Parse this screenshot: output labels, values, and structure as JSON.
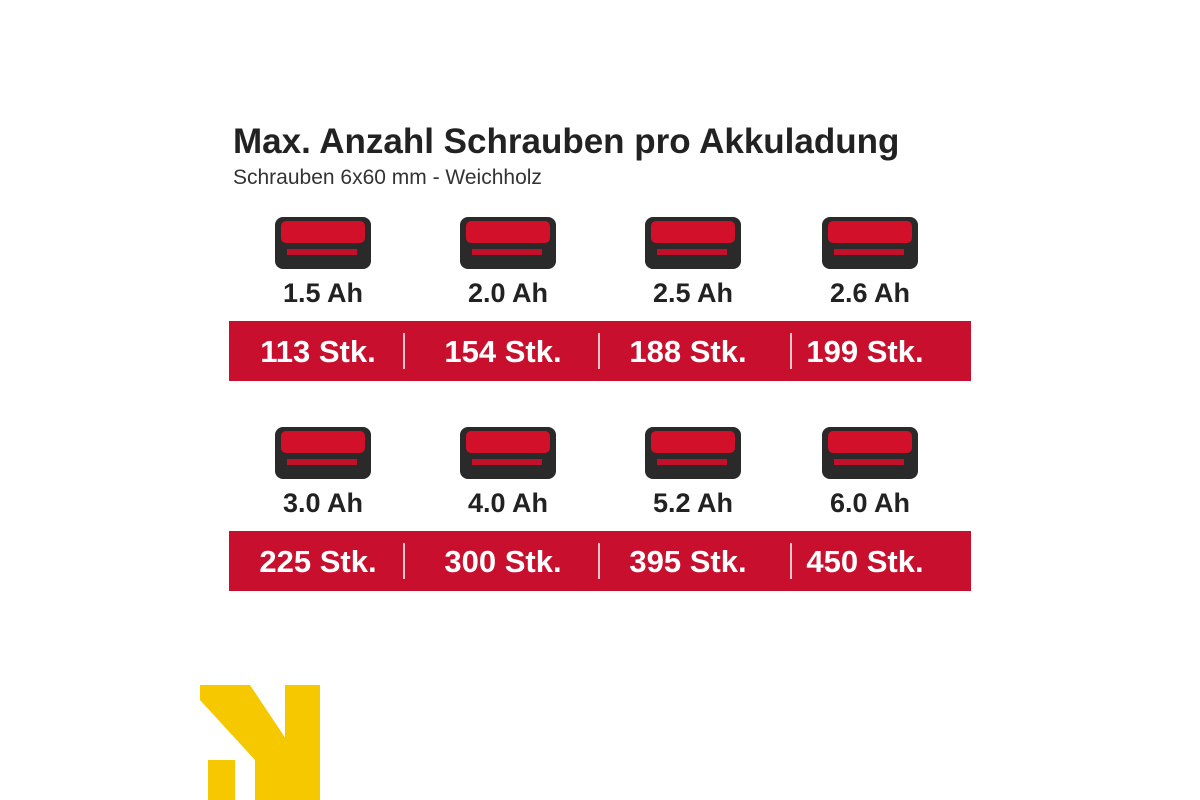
{
  "header": {
    "title": "Max. Anzahl Schrauben pro Akkuladung",
    "subtitle": "Schrauben 6x60 mm - Weichholz"
  },
  "rows": [
    [
      {
        "capacity": "1.5 Ah",
        "count": "113 Stk."
      },
      {
        "capacity": "2.0 Ah",
        "count": "154 Stk."
      },
      {
        "capacity": "2.5 Ah",
        "count": "188 Stk."
      },
      {
        "capacity": "2.6 Ah",
        "count": "199 Stk."
      }
    ],
    [
      {
        "capacity": "3.0 Ah",
        "count": "225 Stk."
      },
      {
        "capacity": "4.0 Ah",
        "count": "300 Stk."
      },
      {
        "capacity": "5.2 Ah",
        "count": "395 Stk."
      },
      {
        "capacity": "6.0 Ah",
        "count": "450 Stk."
      }
    ]
  ]
}
